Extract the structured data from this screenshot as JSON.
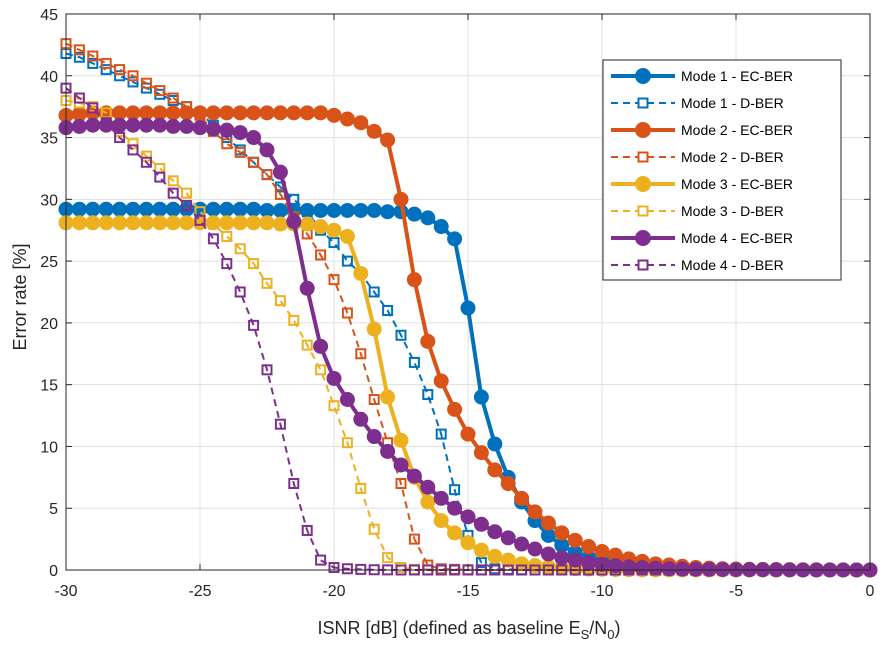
{
  "chart_data": {
    "type": "line",
    "title": "",
    "xlabel": "ISNR [dB] (defined as baseline E",
    "xlabel_sub1": "S",
    "xlabel_mid": "/N",
    "xlabel_sub2": "0",
    "xlabel_end": ")",
    "ylabel": "Error rate [%]",
    "xlim": [
      -30,
      0
    ],
    "ylim": [
      0,
      45
    ],
    "xticks": [
      -30,
      -25,
      -20,
      -15,
      -10,
      -5,
      0
    ],
    "yticks": [
      0,
      5,
      10,
      15,
      20,
      25,
      30,
      35,
      40,
      45
    ],
    "grid": true,
    "legend_position": "top-right",
    "x": [
      -30,
      -29.5,
      -29,
      -28.5,
      -28,
      -27.5,
      -27,
      -26.5,
      -26,
      -25.5,
      -25,
      -24.5,
      -24,
      -23.5,
      -23,
      -22.5,
      -22,
      -21.5,
      -21,
      -20.5,
      -20,
      -19.5,
      -19,
      -18.5,
      -18,
      -17.5,
      -17,
      -16.5,
      -16,
      -15.5,
      -15,
      -14.5,
      -14,
      -13.5,
      -13,
      -12.5,
      -12,
      -11.5,
      -11,
      -10.5,
      -10,
      -9.5,
      -9,
      -8.5,
      -8,
      -7.5,
      -7,
      -6.5,
      -6,
      -5.5,
      -5,
      -4.5,
      -4,
      -3.5,
      -3,
      -2.5,
      -2,
      -1.5,
      -1,
      -0.5,
      0
    ],
    "series": [
      {
        "name": "Mode 1 - EC-BER",
        "color": "#0072BD",
        "style": "solid",
        "marker": "circle",
        "values": [
          29.2,
          29.2,
          29.2,
          29.2,
          29.2,
          29.2,
          29.2,
          29.2,
          29.2,
          29.2,
          29.2,
          29.2,
          29.2,
          29.2,
          29.2,
          29.1,
          29.1,
          29.1,
          29.1,
          29.1,
          29.1,
          29.1,
          29.1,
          29.1,
          29.0,
          29.0,
          28.8,
          28.5,
          27.8,
          26.8,
          21.2,
          14.0,
          10.2,
          7.5,
          5.5,
          4.0,
          2.8,
          2.0,
          1.4,
          1.0,
          0.7,
          0.5,
          0.35,
          0.25,
          0.18,
          0.12,
          0.08,
          0.06,
          0.04,
          0.03,
          0.02,
          0.02,
          0.01,
          0.01,
          0.01,
          0,
          0,
          0,
          0,
          0,
          0
        ]
      },
      {
        "name": "Mode 1 - D-BER",
        "color": "#0072BD",
        "style": "dashed",
        "marker": "square",
        "values": [
          41.8,
          41.5,
          41.0,
          40.5,
          40.0,
          39.5,
          39.0,
          38.5,
          38.0,
          37.5,
          37.0,
          36.0,
          35.0,
          34.0,
          33.0,
          32.0,
          31.0,
          30.0,
          29.0,
          27.5,
          26.5,
          25.0,
          24.0,
          22.5,
          21.0,
          19.0,
          16.8,
          14.2,
          11.0,
          6.5,
          2.8,
          0.6,
          0.1,
          0.05,
          0.02,
          0.01,
          0,
          0,
          0,
          0,
          0,
          0,
          0,
          0,
          0,
          0,
          0,
          0,
          0,
          0,
          0,
          0,
          0,
          0,
          0,
          0,
          0,
          0,
          0,
          0,
          0
        ]
      },
      {
        "name": "Mode 2 - EC-BER",
        "color": "#D95319",
        "style": "solid",
        "marker": "circle",
        "values": [
          36.8,
          36.9,
          37.0,
          37.0,
          37.0,
          37.0,
          37.0,
          37.0,
          37.0,
          37.0,
          37.0,
          37.0,
          37.0,
          37.0,
          37.0,
          37.0,
          37.0,
          37.0,
          37.0,
          37.0,
          36.8,
          36.5,
          36.2,
          35.5,
          34.8,
          30.0,
          23.5,
          18.5,
          15.3,
          13.0,
          11.0,
          9.5,
          8.1,
          7.0,
          5.8,
          4.7,
          3.8,
          3.0,
          2.4,
          1.9,
          1.5,
          1.2,
          0.9,
          0.7,
          0.5,
          0.4,
          0.3,
          0.2,
          0.15,
          0.1,
          0.08,
          0.06,
          0.05,
          0.04,
          0.03,
          0.02,
          0.02,
          0.01,
          0.01,
          0,
          0
        ]
      },
      {
        "name": "Mode 2 - D-BER",
        "color": "#D95319",
        "style": "dashed",
        "marker": "square",
        "values": [
          42.6,
          42.1,
          41.6,
          41.0,
          40.5,
          40.0,
          39.4,
          38.8,
          38.2,
          37.5,
          36.8,
          35.5,
          34.5,
          33.8,
          33.0,
          32.0,
          30.4,
          28.6,
          27.2,
          25.5,
          23.5,
          20.8,
          17.5,
          13.8,
          10.3,
          7.0,
          2.5,
          0.4,
          0.1,
          0.05,
          0.02,
          0.01,
          0,
          0,
          0,
          0,
          0,
          0,
          0,
          0,
          0,
          0,
          0,
          0,
          0,
          0,
          0,
          0,
          0,
          0,
          0,
          0,
          0,
          0,
          0,
          0,
          0,
          0,
          0,
          0,
          0
        ]
      },
      {
        "name": "Mode 3 - EC-BER",
        "color": "#EDB120",
        "style": "solid",
        "marker": "circle",
        "values": [
          28.1,
          28.1,
          28.1,
          28.1,
          28.1,
          28.1,
          28.1,
          28.1,
          28.1,
          28.1,
          28.1,
          28.1,
          28.1,
          28.1,
          28.1,
          28.1,
          28.0,
          28.0,
          28.0,
          27.8,
          27.5,
          27.0,
          24.0,
          19.5,
          14.0,
          10.5,
          7.5,
          5.5,
          4.0,
          3.0,
          2.2,
          1.6,
          1.1,
          0.8,
          0.5,
          0.35,
          0.25,
          0.18,
          0.12,
          0.08,
          0.05,
          0.03,
          0.02,
          0.01,
          0.01,
          0,
          0,
          0,
          0,
          0,
          0,
          0,
          0,
          0,
          0,
          0,
          0,
          0,
          0,
          0,
          0
        ]
      },
      {
        "name": "Mode 3 - D-BER",
        "color": "#EDB120",
        "style": "dashed",
        "marker": "square",
        "values": [
          38.0,
          37.8,
          37.5,
          37.0,
          35.5,
          34.5,
          33.5,
          32.5,
          31.5,
          30.5,
          29.0,
          28.0,
          27.0,
          26.0,
          24.8,
          23.2,
          21.8,
          20.2,
          18.2,
          16.2,
          13.3,
          10.3,
          6.6,
          3.3,
          1.0,
          0.2,
          0.05,
          0.02,
          0.01,
          0,
          0,
          0,
          0,
          0,
          0,
          0,
          0,
          0,
          0,
          0,
          0,
          0,
          0,
          0,
          0,
          0,
          0,
          0,
          0,
          0,
          0,
          0,
          0,
          0,
          0,
          0,
          0,
          0,
          0,
          0,
          0
        ]
      },
      {
        "name": "Mode 4 - EC-BER",
        "color": "#7E2F8E",
        "style": "solid",
        "marker": "circle",
        "values": [
          35.8,
          35.9,
          36.0,
          36.0,
          36.0,
          36.0,
          36.0,
          36.0,
          35.9,
          35.9,
          35.8,
          35.7,
          35.6,
          35.4,
          35.0,
          34.0,
          32.2,
          28.2,
          22.8,
          18.1,
          15.5,
          13.8,
          12.2,
          10.8,
          9.6,
          8.5,
          7.6,
          6.7,
          5.8,
          5.0,
          4.3,
          3.7,
          3.1,
          2.6,
          2.1,
          1.7,
          1.3,
          1.0,
          0.8,
          0.6,
          0.45,
          0.35,
          0.25,
          0.2,
          0.15,
          0.1,
          0.08,
          0.06,
          0.05,
          0.04,
          0.03,
          0.02,
          0.02,
          0.01,
          0.01,
          0,
          0,
          0,
          0,
          0,
          0
        ]
      },
      {
        "name": "Mode 4 - D-BER",
        "color": "#7E2F8E",
        "style": "dashed",
        "marker": "square",
        "values": [
          39.0,
          38.2,
          37.4,
          36.2,
          35.0,
          34.0,
          33.0,
          31.8,
          30.5,
          29.5,
          28.3,
          26.8,
          24.8,
          22.5,
          19.8,
          16.2,
          11.8,
          7.0,
          3.2,
          0.8,
          0.2,
          0.1,
          0.05,
          0.02,
          0.01,
          0,
          0,
          0,
          0,
          0,
          0,
          0,
          0,
          0,
          0,
          0,
          0,
          0,
          0,
          0,
          0,
          0,
          0,
          0,
          0,
          0,
          0,
          0,
          0,
          0,
          0,
          0,
          0,
          0,
          0,
          0,
          0,
          0,
          0,
          0,
          0
        ]
      }
    ]
  }
}
